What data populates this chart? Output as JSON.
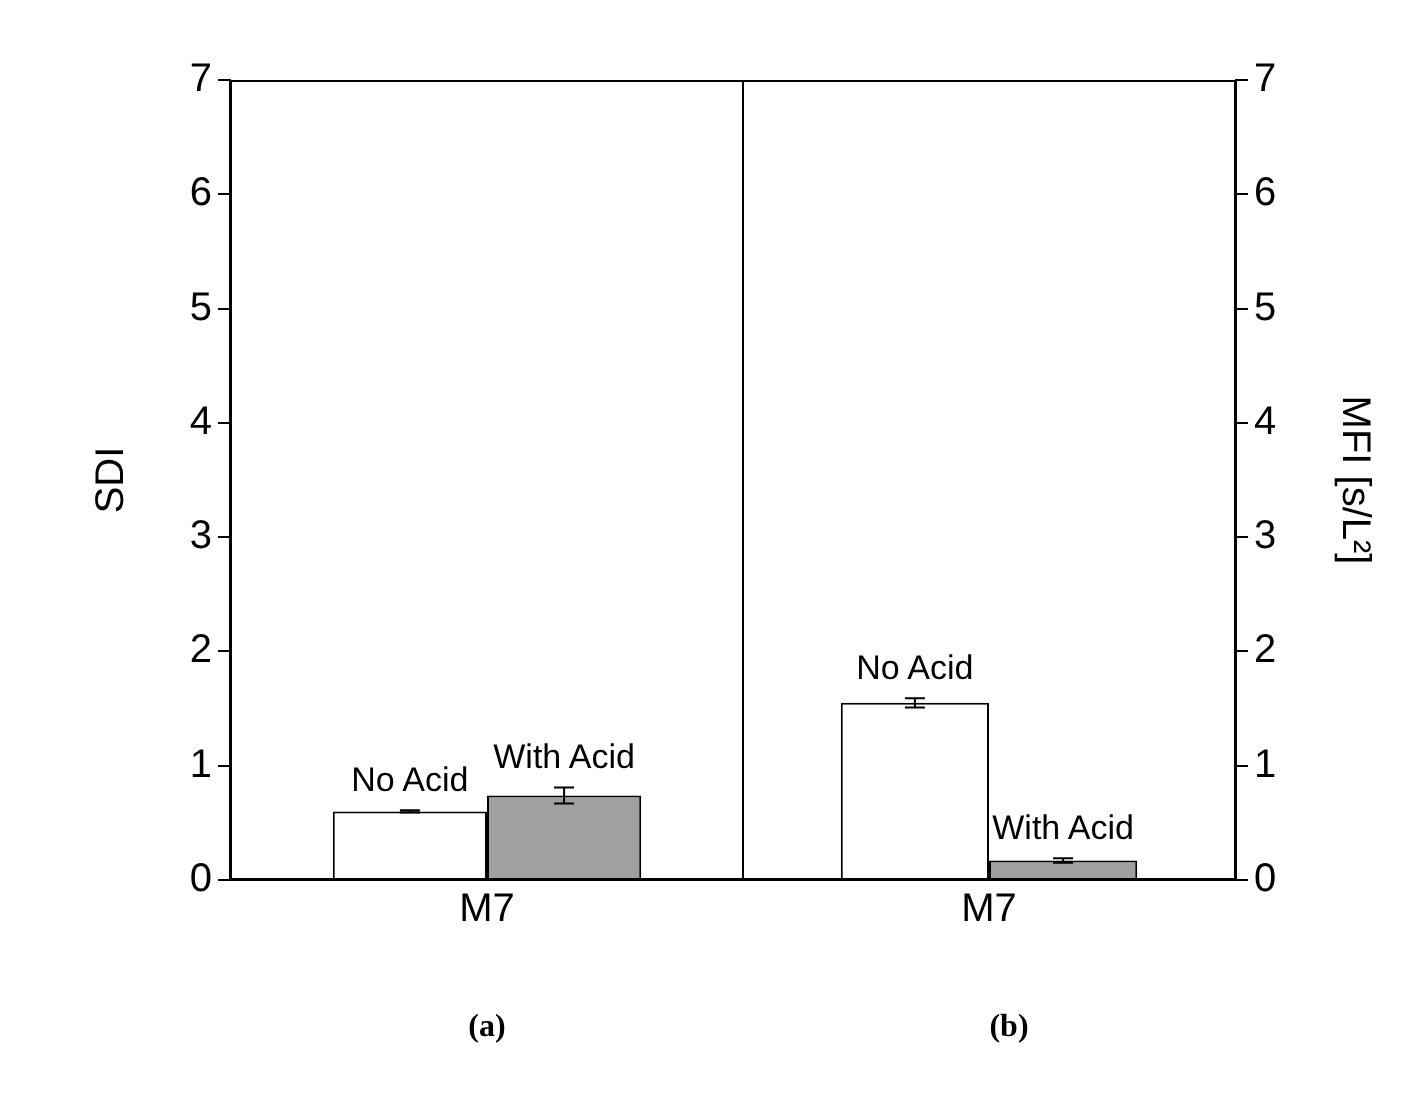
{
  "chart_data": [
    {
      "type": "bar",
      "categories": [
        "M7"
      ],
      "ylabel": "SDI",
      "ylim": [
        0,
        7
      ],
      "yticks": [
        0,
        1,
        2,
        3,
        4,
        5,
        6,
        7
      ],
      "grid": false,
      "annotations": [
        "(a)"
      ],
      "series": [
        {
          "name": "No Acid",
          "color": "#ffffff",
          "values": [
            0.6
          ],
          "errors": [
            0.01
          ]
        },
        {
          "name": "With Acid",
          "color": "#a0a0a0",
          "values": [
            0.74
          ],
          "errors": [
            0.07
          ]
        }
      ]
    },
    {
      "type": "bar",
      "categories": [
        "M7"
      ],
      "y2label": "MFI [s/L²]",
      "y2lim": [
        0,
        7
      ],
      "y2ticks": [
        0,
        1,
        2,
        3,
        4,
        5,
        6,
        7
      ],
      "grid": false,
      "annotations": [
        "(b)"
      ],
      "series": [
        {
          "name": "No Acid",
          "color": "#ffffff",
          "values": [
            1.55
          ],
          "errors": [
            0.04
          ],
          "axis": "y2"
        },
        {
          "name": "With Acid",
          "color": "#a0a0a0",
          "values": [
            0.17
          ],
          "errors": [
            0.02
          ],
          "axis": "y2"
        }
      ]
    }
  ]
}
